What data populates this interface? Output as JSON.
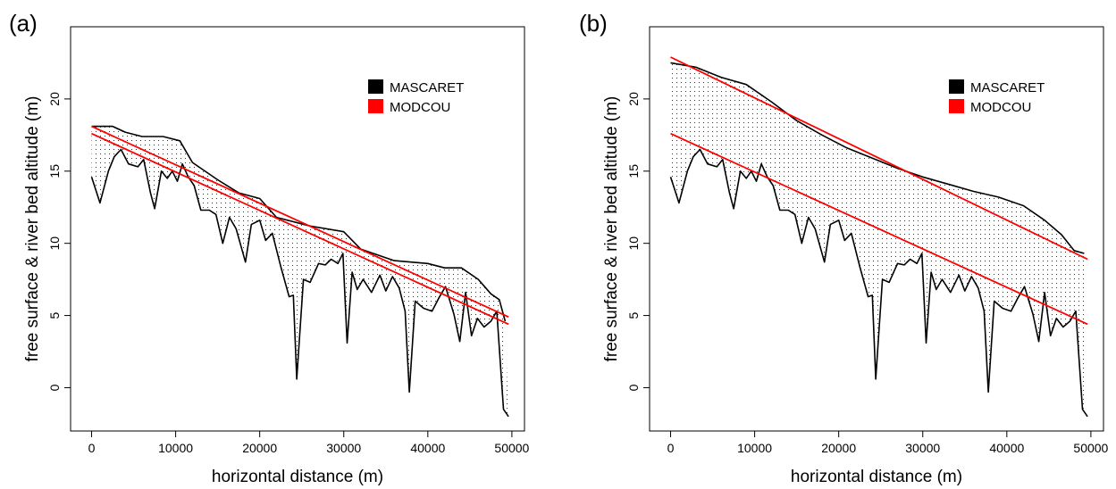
{
  "chart_data": [
    {
      "type": "line",
      "panel": "(a)",
      "xlabel": "horizontal distance (m)",
      "ylabel": "free surface & river bed altitude (m)",
      "xlim": [
        -2500,
        51500
      ],
      "ylim": [
        -3,
        25
      ],
      "xticks": [
        0,
        10000,
        20000,
        30000,
        40000,
        50000
      ],
      "yticks": [
        0,
        5,
        10,
        15,
        20
      ],
      "legend_position": "top-right",
      "legend": [
        {
          "label": "MASCARET",
          "color": "#000000"
        },
        {
          "label": "MODCOU",
          "color": "#ff0000"
        }
      ],
      "shading": "dotted area between river bed and MASCARET free surface",
      "series": [
        {
          "name": "MASCARET",
          "role": "river bed",
          "color": "#000000",
          "points": [
            [
              0,
              14.6
            ],
            [
              1000,
              12.8
            ],
            [
              2000,
              15.0
            ],
            [
              2700,
              16.0
            ],
            [
              3500,
              16.5
            ],
            [
              4400,
              15.5
            ],
            [
              5500,
              15.3
            ],
            [
              6200,
              15.8
            ],
            [
              7000,
              13.5
            ],
            [
              7500,
              12.4
            ],
            [
              8300,
              15.0
            ],
            [
              9000,
              14.5
            ],
            [
              9600,
              15.0
            ],
            [
              10200,
              14.3
            ],
            [
              10800,
              15.5
            ],
            [
              11500,
              14.6
            ],
            [
              12200,
              14.0
            ],
            [
              13000,
              12.3
            ],
            [
              14000,
              12.3
            ],
            [
              14800,
              12.0
            ],
            [
              15600,
              10.0
            ],
            [
              16400,
              11.8
            ],
            [
              17200,
              11.0
            ],
            [
              18300,
              8.7
            ],
            [
              19000,
              11.3
            ],
            [
              20000,
              11.6
            ],
            [
              20700,
              10.2
            ],
            [
              21500,
              10.7
            ],
            [
              22500,
              8.4
            ],
            [
              23500,
              6.3
            ],
            [
              24000,
              6.4
            ],
            [
              24400,
              0.6
            ],
            [
              25200,
              7.5
            ],
            [
              26000,
              7.3
            ],
            [
              27000,
              8.6
            ],
            [
              27800,
              8.5
            ],
            [
              28500,
              8.9
            ],
            [
              29300,
              8.6
            ],
            [
              29900,
              9.3
            ],
            [
              30400,
              3.1
            ],
            [
              31000,
              8.0
            ],
            [
              31600,
              6.8
            ],
            [
              32300,
              7.5
            ],
            [
              33300,
              6.6
            ],
            [
              34300,
              7.8
            ],
            [
              35000,
              6.7
            ],
            [
              35800,
              7.7
            ],
            [
              36600,
              6.9
            ],
            [
              37300,
              5.3
            ],
            [
              37800,
              -0.3
            ],
            [
              38500,
              6.0
            ],
            [
              39500,
              5.5
            ],
            [
              40500,
              5.3
            ],
            [
              41300,
              6.2
            ],
            [
              42100,
              7.0
            ],
            [
              43100,
              5.1
            ],
            [
              43800,
              3.2
            ],
            [
              44500,
              6.6
            ],
            [
              45200,
              3.6
            ],
            [
              45900,
              4.8
            ],
            [
              46700,
              4.2
            ],
            [
              47500,
              4.6
            ],
            [
              48200,
              5.3
            ],
            [
              49000,
              -1.5
            ],
            [
              49600,
              -2.0
            ]
          ]
        },
        {
          "name": "MASCARET",
          "role": "free surface",
          "color": "#000000",
          "points": [
            [
              0,
              18.1
            ],
            [
              2500,
              18.1
            ],
            [
              4000,
              17.7
            ],
            [
              6000,
              17.4
            ],
            [
              8500,
              17.4
            ],
            [
              10500,
              17.1
            ],
            [
              12000,
              15.6
            ],
            [
              15000,
              14.4
            ],
            [
              17500,
              13.5
            ],
            [
              20000,
              13.1
            ],
            [
              22000,
              11.8
            ],
            [
              26000,
              11.2
            ],
            [
              30000,
              10.8
            ],
            [
              32000,
              9.6
            ],
            [
              36000,
              8.8
            ],
            [
              40000,
              8.6
            ],
            [
              42000,
              8.3
            ],
            [
              44000,
              8.3
            ],
            [
              46000,
              7.5
            ],
            [
              47500,
              6.5
            ],
            [
              48500,
              6.1
            ],
            [
              49200,
              4.6
            ]
          ]
        },
        {
          "name": "MODCOU",
          "role": "free surface (upper)",
          "color": "#ff0000",
          "points": [
            [
              0,
              18.1
            ],
            [
              49600,
              4.9
            ]
          ]
        },
        {
          "name": "MODCOU",
          "role": "free surface (lower)",
          "color": "#ff0000",
          "points": [
            [
              0,
              17.6
            ],
            [
              49600,
              4.4
            ]
          ]
        }
      ]
    },
    {
      "type": "line",
      "panel": "(b)",
      "xlabel": "horizontal distance (m)",
      "ylabel": "free surface & river bed altitude (m)",
      "xlim": [
        -2500,
        51500
      ],
      "ylim": [
        -3,
        25
      ],
      "xticks": [
        0,
        10000,
        20000,
        30000,
        40000,
        50000
      ],
      "yticks": [
        0,
        5,
        10,
        15,
        20
      ],
      "legend_position": "top-right",
      "legend": [
        {
          "label": "MASCARET",
          "color": "#000000"
        },
        {
          "label": "MODCOU",
          "color": "#ff0000"
        }
      ],
      "shading": "dotted area between river bed and MASCARET free surface",
      "series": [
        {
          "name": "MASCARET",
          "role": "river bed",
          "color": "#000000",
          "points": [
            [
              0,
              14.6
            ],
            [
              1000,
              12.8
            ],
            [
              2000,
              15.0
            ],
            [
              2700,
              16.0
            ],
            [
              3500,
              16.5
            ],
            [
              4400,
              15.5
            ],
            [
              5500,
              15.3
            ],
            [
              6200,
              15.8
            ],
            [
              7000,
              13.5
            ],
            [
              7500,
              12.4
            ],
            [
              8300,
              15.0
            ],
            [
              9000,
              14.5
            ],
            [
              9600,
              15.0
            ],
            [
              10200,
              14.3
            ],
            [
              10800,
              15.5
            ],
            [
              11500,
              14.6
            ],
            [
              12200,
              14.0
            ],
            [
              13000,
              12.3
            ],
            [
              14000,
              12.3
            ],
            [
              14800,
              12.0
            ],
            [
              15600,
              10.0
            ],
            [
              16400,
              11.8
            ],
            [
              17200,
              11.0
            ],
            [
              18300,
              8.7
            ],
            [
              19000,
              11.3
            ],
            [
              20000,
              11.6
            ],
            [
              20700,
              10.2
            ],
            [
              21500,
              10.7
            ],
            [
              22500,
              8.4
            ],
            [
              23500,
              6.3
            ],
            [
              24000,
              6.4
            ],
            [
              24400,
              0.6
            ],
            [
              25200,
              7.5
            ],
            [
              26000,
              7.3
            ],
            [
              27000,
              8.6
            ],
            [
              27800,
              8.5
            ],
            [
              28500,
              8.9
            ],
            [
              29300,
              8.6
            ],
            [
              29900,
              9.3
            ],
            [
              30400,
              3.1
            ],
            [
              31000,
              8.0
            ],
            [
              31600,
              6.8
            ],
            [
              32300,
              7.5
            ],
            [
              33300,
              6.6
            ],
            [
              34300,
              7.8
            ],
            [
              35000,
              6.7
            ],
            [
              35800,
              7.7
            ],
            [
              36600,
              6.9
            ],
            [
              37300,
              5.3
            ],
            [
              37800,
              -0.3
            ],
            [
              38500,
              6.0
            ],
            [
              39500,
              5.5
            ],
            [
              40500,
              5.3
            ],
            [
              41300,
              6.2
            ],
            [
              42100,
              7.0
            ],
            [
              43100,
              5.1
            ],
            [
              43800,
              3.2
            ],
            [
              44500,
              6.6
            ],
            [
              45200,
              3.6
            ],
            [
              45900,
              4.8
            ],
            [
              46700,
              4.2
            ],
            [
              47500,
              4.6
            ],
            [
              48200,
              5.3
            ],
            [
              49000,
              -1.5
            ],
            [
              49600,
              -2.0
            ]
          ]
        },
        {
          "name": "MASCARET",
          "role": "free surface",
          "color": "#000000",
          "points": [
            [
              0,
              22.5
            ],
            [
              3000,
              22.2
            ],
            [
              6000,
              21.5
            ],
            [
              9000,
              21.0
            ],
            [
              12000,
              19.8
            ],
            [
              15000,
              18.5
            ],
            [
              18000,
              17.5
            ],
            [
              21000,
              16.6
            ],
            [
              24000,
              15.9
            ],
            [
              27000,
              15.2
            ],
            [
              30000,
              14.6
            ],
            [
              33000,
              14.1
            ],
            [
              36000,
              13.6
            ],
            [
              39000,
              13.2
            ],
            [
              42000,
              12.6
            ],
            [
              44500,
              11.6
            ],
            [
              46500,
              10.6
            ],
            [
              48000,
              9.5
            ],
            [
              49200,
              9.3
            ]
          ]
        },
        {
          "name": "MODCOU",
          "role": "free surface (upper)",
          "color": "#ff0000",
          "points": [
            [
              0,
              22.9
            ],
            [
              49600,
              8.9
            ]
          ]
        },
        {
          "name": "MODCOU",
          "role": "free surface (lower)",
          "color": "#ff0000",
          "points": [
            [
              0,
              17.6
            ],
            [
              49600,
              4.4
            ]
          ]
        }
      ]
    }
  ]
}
